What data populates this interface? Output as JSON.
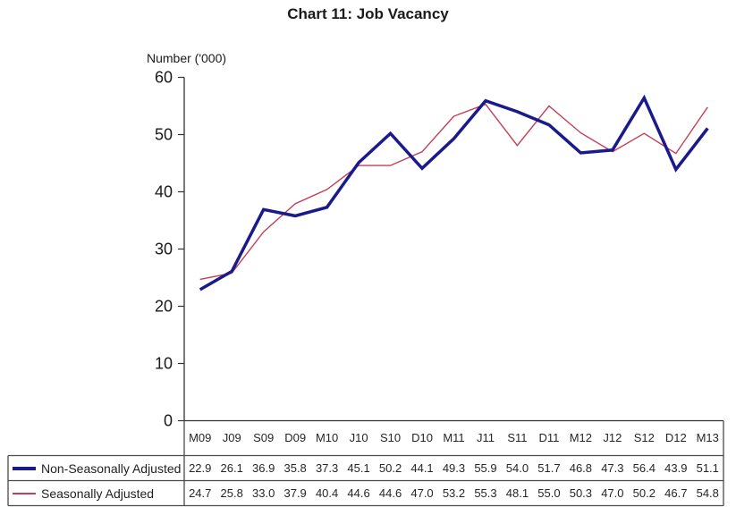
{
  "chart_data": {
    "type": "line",
    "title": "Chart 11: Job Vacancy",
    "ylabel": "Number ('000)",
    "xlabel": "",
    "ylim": [
      0,
      60
    ],
    "ytick_step": 10,
    "grid": false,
    "legend_position": "table-left",
    "categories": [
      "M09",
      "J09",
      "S09",
      "D09",
      "M10",
      "J10",
      "S10",
      "D10",
      "M11",
      "J11",
      "S11",
      "D11",
      "M12",
      "J12",
      "S12",
      "D12",
      "M13"
    ],
    "series": [
      {
        "name": "Non-Seasonally Adjusted",
        "color": "#1a1a8c",
        "line_width": 3.5,
        "values": [
          22.9,
          26.1,
          36.9,
          35.8,
          37.3,
          45.1,
          50.2,
          44.1,
          49.3,
          55.9,
          54.0,
          51.7,
          46.8,
          47.3,
          56.4,
          43.9,
          51.1
        ]
      },
      {
        "name": "Seasonally Adjusted",
        "color": "#c43e55",
        "line_width": 1.4,
        "values": [
          24.7,
          25.8,
          33.0,
          37.9,
          40.4,
          44.6,
          44.6,
          47.0,
          53.2,
          55.3,
          48.1,
          55.0,
          50.3,
          47.0,
          50.2,
          46.7,
          54.8
        ]
      }
    ],
    "axis_color": "#333333",
    "table_border_color": "#4a4a4a",
    "value_decimals": 1
  }
}
